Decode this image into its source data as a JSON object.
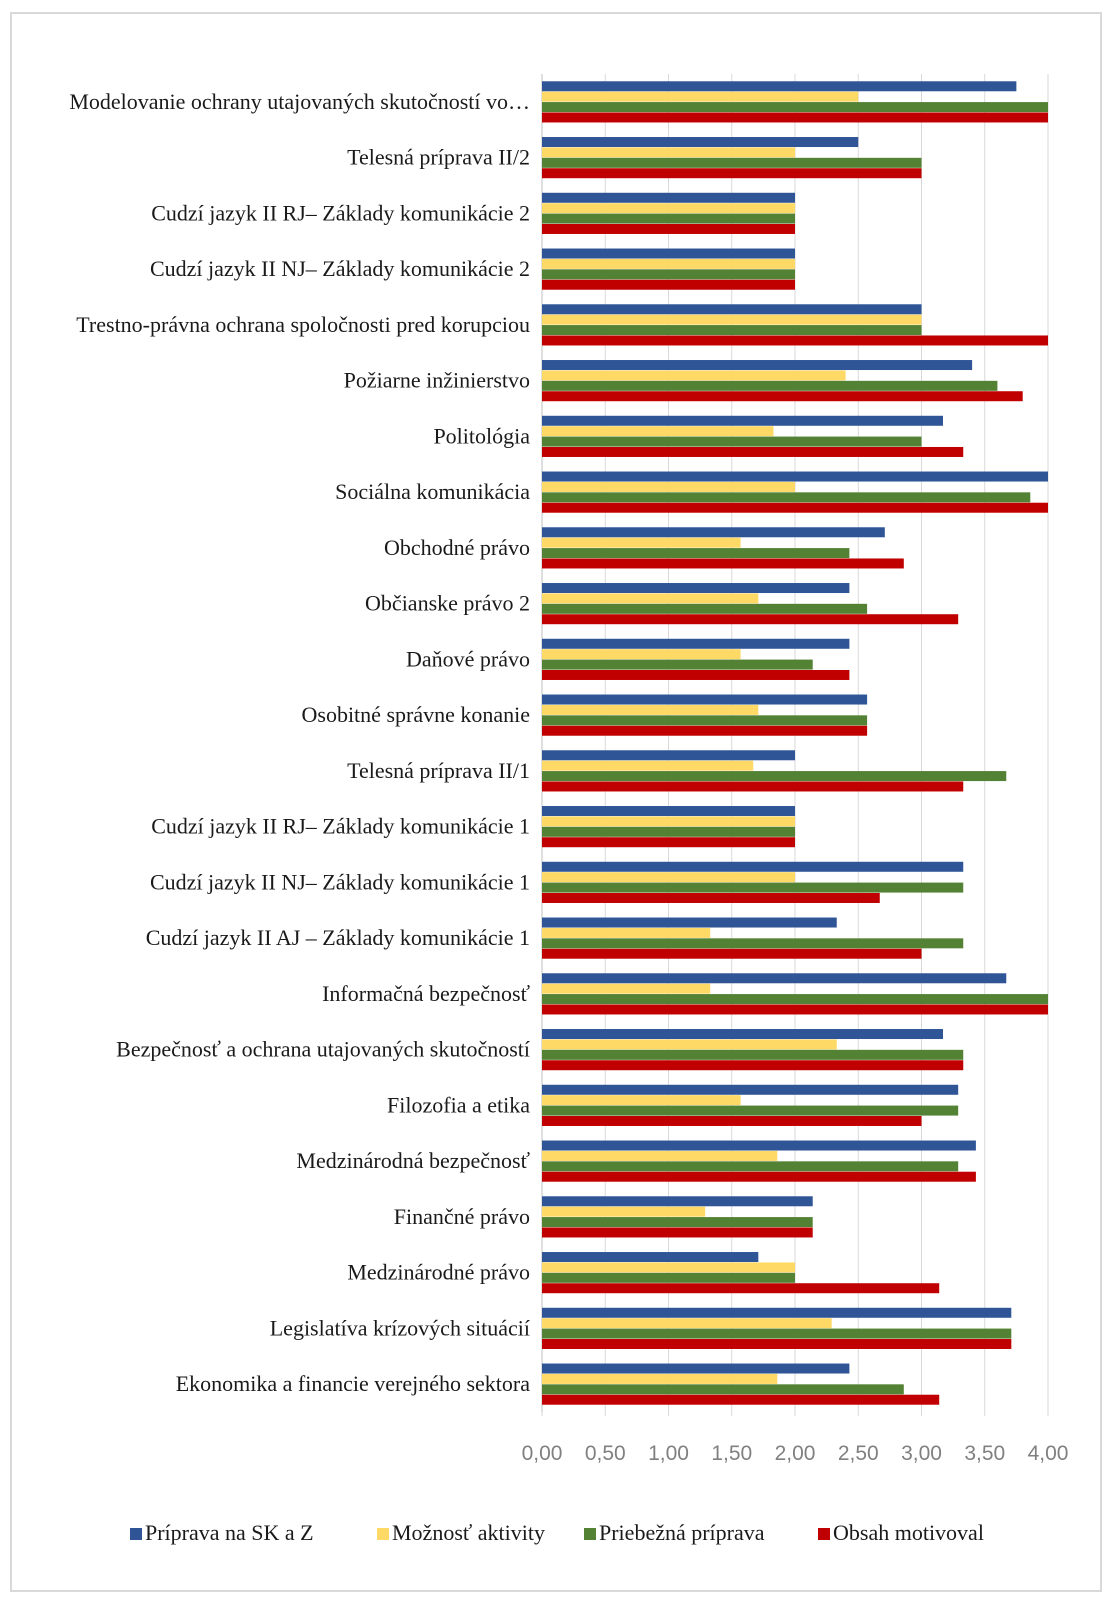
{
  "chart_data": {
    "type": "bar",
    "orientation": "horizontal",
    "categories": [
      "Modelovanie ochrany utajovaných skutočností vo…",
      "Telesná príprava II/2",
      "Cudzí jazyk  II RJ– Základy komunikácie  2",
      "Cudzí jazyk  II NJ– Základy komunikácie  2",
      "Trestno-právna ochrana spoločnosti pred korupciou",
      "Požiarne inžinierstvo",
      "Politológia",
      "Sociálna komunikácia",
      "Obchodné právo",
      "Občianske právo 2",
      "Daňové právo",
      "Osobitné správne konanie",
      "Telesná príprava II/1",
      "Cudzí jazyk  II RJ– Základy komunikácie  1",
      "Cudzí jazyk  II NJ– Základy komunikácie  1",
      "Cudzí jazyk  II AJ – Základy komunikácie  1",
      "Informačná bezpečnosť",
      "Bezpečnosť a ochrana utajovaných skutočností",
      "Filozofia a etika",
      "Medzinárodná bezpečnosť",
      "Finančné právo",
      "Medzinárodné právo",
      "Legislatíva krízových situácií",
      "Ekonomika a financie verejného sektora"
    ],
    "series": [
      {
        "name": "Príprava na SK a Z",
        "color": "#2f5597",
        "values": [
          3.75,
          2.5,
          2.0,
          2.0,
          3.0,
          3.4,
          3.17,
          4.0,
          2.71,
          2.43,
          2.43,
          2.57,
          2.0,
          2.0,
          3.33,
          2.33,
          3.67,
          3.17,
          3.29,
          3.43,
          2.14,
          1.71,
          3.71,
          2.43
        ]
      },
      {
        "name": "Možnosť aktivity",
        "color": "#ffd966",
        "values": [
          2.5,
          2.0,
          2.0,
          2.0,
          3.0,
          2.4,
          1.83,
          2.0,
          1.57,
          1.71,
          1.57,
          1.71,
          1.67,
          2.0,
          2.0,
          1.33,
          1.33,
          2.33,
          1.57,
          1.86,
          1.29,
          2.0,
          2.29,
          1.86
        ]
      },
      {
        "name": "Priebežná príprava",
        "color": "#548235",
        "values": [
          4.0,
          3.0,
          2.0,
          2.0,
          3.0,
          3.6,
          3.0,
          3.86,
          2.43,
          2.57,
          2.14,
          2.57,
          3.67,
          2.0,
          3.33,
          3.33,
          4.0,
          3.33,
          3.29,
          3.29,
          2.14,
          2.0,
          3.71,
          2.86
        ]
      },
      {
        "name": "Obsah motivoval",
        "color": "#c00000",
        "values": [
          4.0,
          3.0,
          2.0,
          2.0,
          4.0,
          3.8,
          3.33,
          4.0,
          2.86,
          3.29,
          2.43,
          2.57,
          3.33,
          2.0,
          2.67,
          3.0,
          4.0,
          3.33,
          3.0,
          3.43,
          2.14,
          3.14,
          3.71,
          3.14
        ]
      }
    ],
    "xticks": [
      "0,00",
      "0,50",
      "1,00",
      "1,50",
      "2,00",
      "2,50",
      "3,00",
      "3,50",
      "4,00"
    ],
    "xlim": [
      0,
      4
    ],
    "grid": "vertical",
    "legend": "bottom"
  }
}
